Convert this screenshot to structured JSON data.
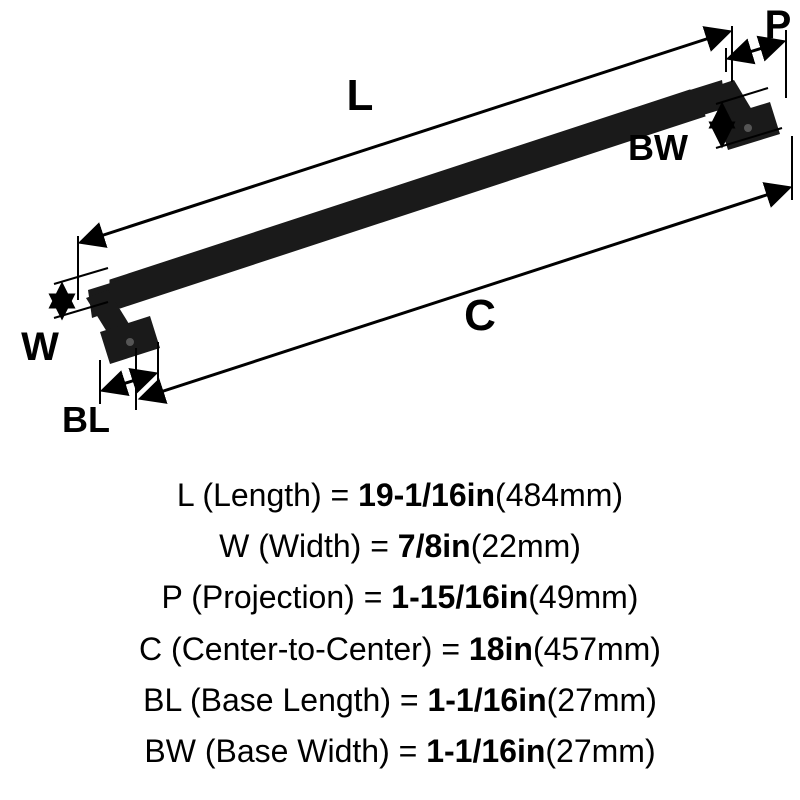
{
  "diagram": {
    "type": "dimensioned-technical-drawing",
    "background_color": "#ffffff",
    "stroke_color": "#000000",
    "fill_color": "#1a1a1a",
    "label_color": "#000000",
    "label_fontsize_large": 44,
    "label_fontsize_small": 36,
    "line_width_thin": 2,
    "line_width_thick": 3,
    "labels": {
      "L": "L",
      "W": "W",
      "P": "P",
      "C": "C",
      "BL": "BL",
      "BW": "BW"
    }
  },
  "specs": {
    "fontsize": 32,
    "text_color": "#000000",
    "items": [
      {
        "sym": "L",
        "name": "Length",
        "in": "19-1/16in",
        "mm": "484mm"
      },
      {
        "sym": "W",
        "name": "Width",
        "in": "7/8in",
        "mm": "22mm"
      },
      {
        "sym": "P",
        "name": "Projection",
        "in": "1-15/16in",
        "mm": "49mm"
      },
      {
        "sym": "C",
        "name": "Center-to-Center",
        "in": "18in",
        "mm": "457mm"
      },
      {
        "sym": "BL",
        "name": "Base Length",
        "in": "1-1/16in",
        "mm": "27mm"
      },
      {
        "sym": "BW",
        "name": "Base Width",
        "in": "1-1/16in",
        "mm": "27mm"
      }
    ]
  }
}
